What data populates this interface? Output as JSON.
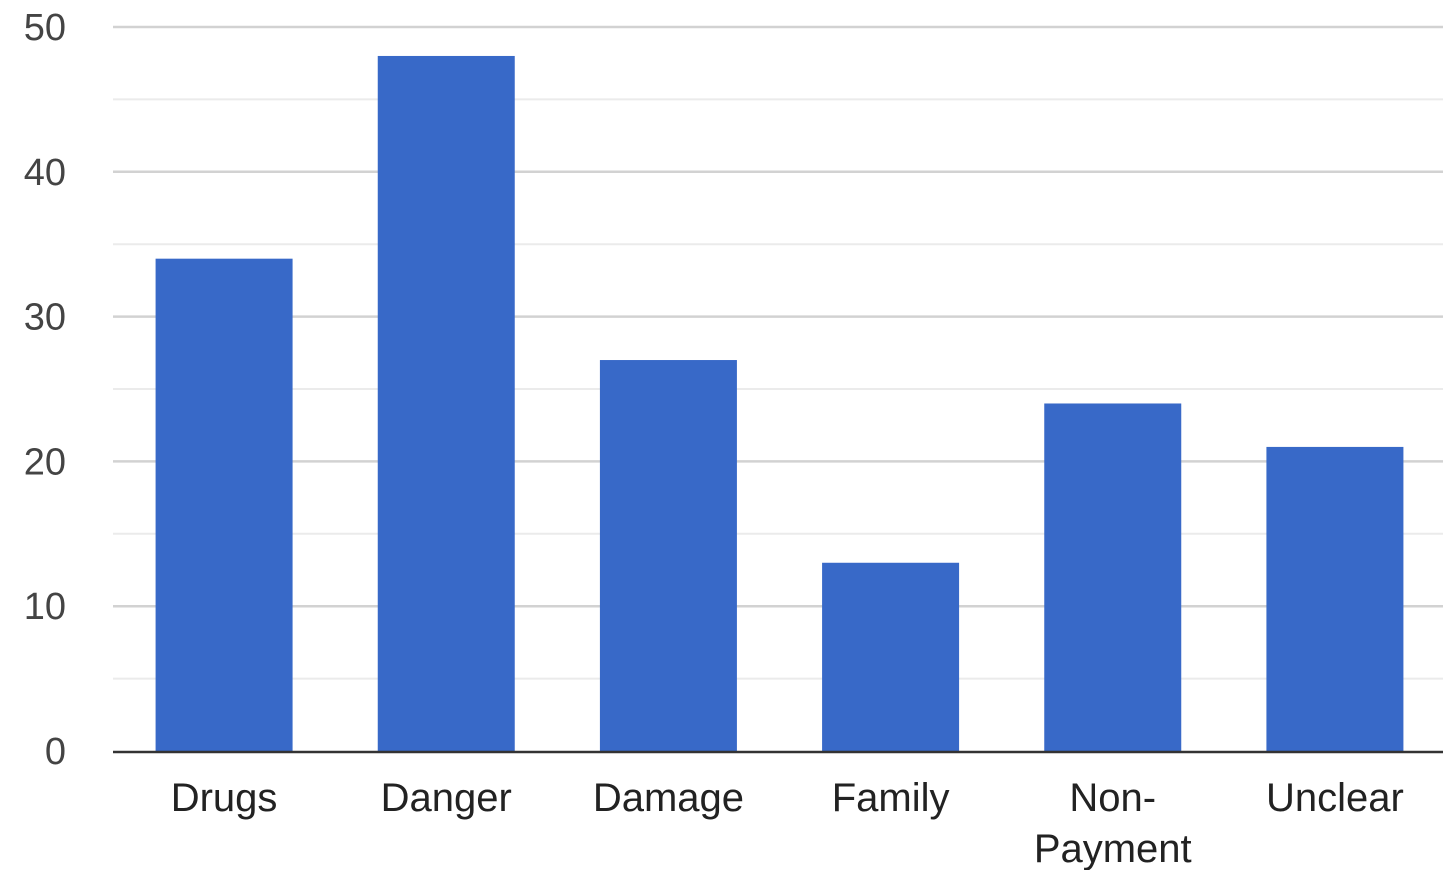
{
  "colors": {
    "bar": "#3869c8",
    "major_grid": "#d2d2d2",
    "minor_grid": "#ebebeb",
    "baseline": "#333333"
  },
  "chart_data": {
    "type": "bar",
    "title": "",
    "xlabel": "",
    "ylabel": "",
    "categories": [
      [
        "Drugs"
      ],
      [
        "Danger"
      ],
      [
        "Damage"
      ],
      [
        "Family"
      ],
      [
        "Non-",
        "Payment"
      ],
      [
        "Unclear"
      ]
    ],
    "values": [
      34,
      48,
      27,
      13,
      24,
      21
    ],
    "ylim": [
      0,
      50
    ],
    "yticks": [
      0,
      10,
      20,
      30,
      40,
      50
    ],
    "minor_gridlines": [
      5,
      15,
      25,
      35,
      45
    ],
    "grid": true,
    "legend": "none"
  }
}
